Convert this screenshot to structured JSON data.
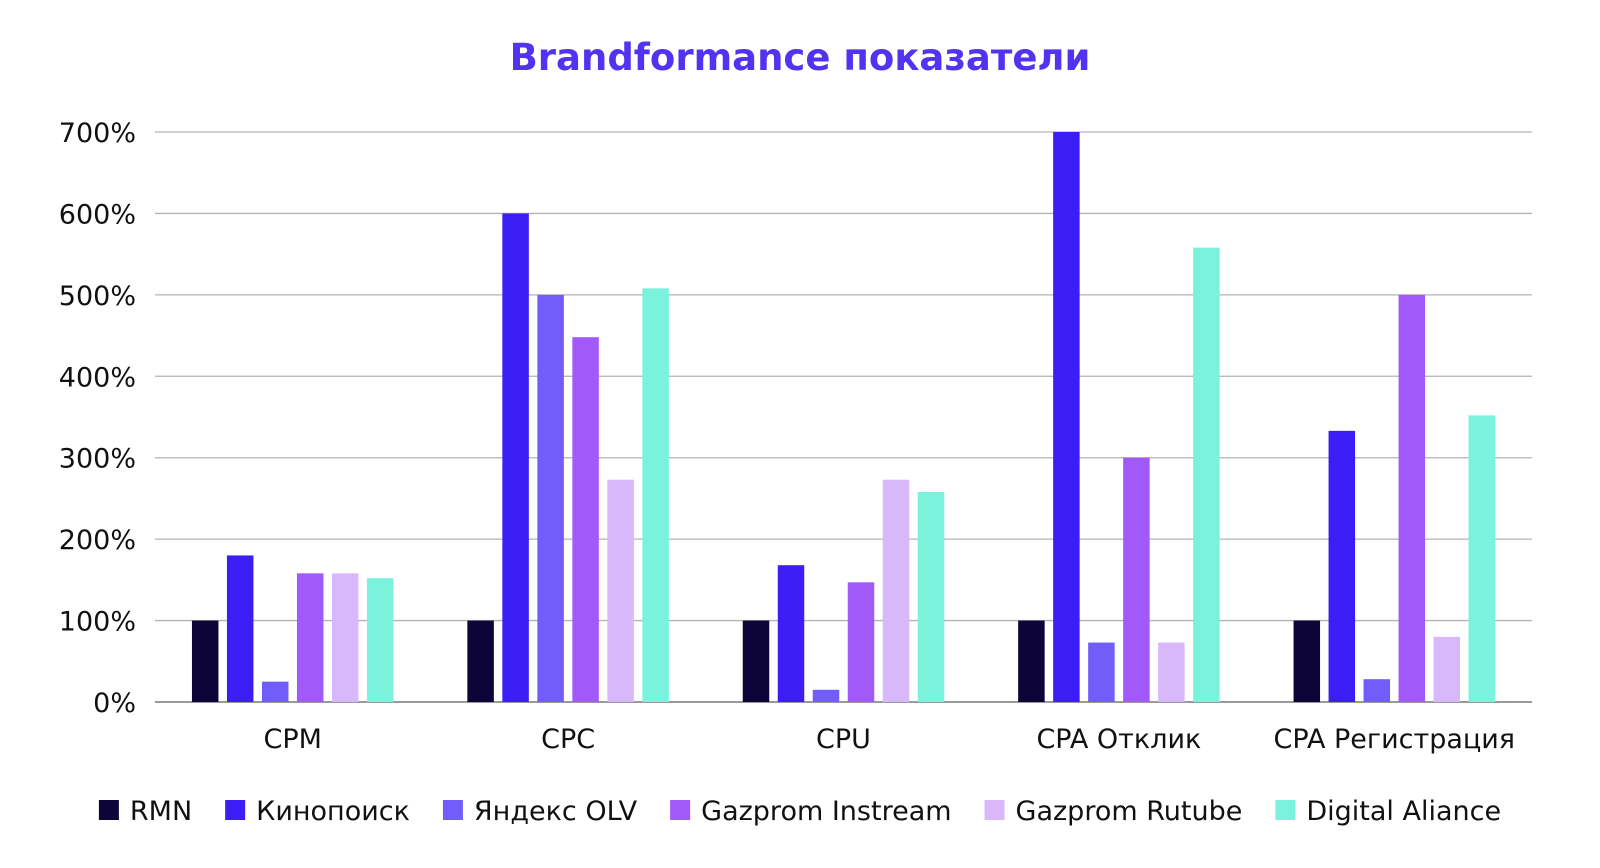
{
  "chart_data": {
    "type": "bar",
    "title": "Brandformance показатели",
    "title_color": "#5233F0",
    "xlabel": "",
    "ylabel": "",
    "ylim": [
      0,
      7
    ],
    "y_ticks": [
      0,
      1,
      2,
      3,
      4,
      5,
      6,
      7
    ],
    "y_tick_labels": [
      "0%",
      "100%",
      "200%",
      "300%",
      "400%",
      "500%",
      "600%",
      "700%"
    ],
    "grid": true,
    "legend_position": "bottom",
    "categories": [
      "CPM",
      "CPC",
      "CPU",
      "CPA Отклик",
      "CPA Регистрация"
    ],
    "series": [
      {
        "name": "RMN",
        "color": "#0D0537",
        "values": [
          1.0,
          1.0,
          1.0,
          1.0,
          1.0
        ]
      },
      {
        "name": "Кинопоиск",
        "color": "#3D1DF5",
        "values": [
          1.8,
          6.0,
          1.68,
          7.0,
          3.33
        ]
      },
      {
        "name": "Яндекс OLV",
        "color": "#725CFA",
        "values": [
          0.25,
          5.0,
          0.15,
          0.73,
          0.28
        ]
      },
      {
        "name": "Gazprom Instream",
        "color": "#A259F9",
        "values": [
          1.58,
          4.48,
          1.47,
          3.0,
          5.0
        ]
      },
      {
        "name": "Gazprom Rutube",
        "color": "#D8B8FB",
        "values": [
          1.58,
          2.73,
          2.73,
          0.73,
          0.8
        ]
      },
      {
        "name": "Digital Aliance",
        "color": "#7BF2DC",
        "values": [
          1.52,
          5.08,
          2.58,
          5.58,
          3.52
        ]
      }
    ]
  }
}
